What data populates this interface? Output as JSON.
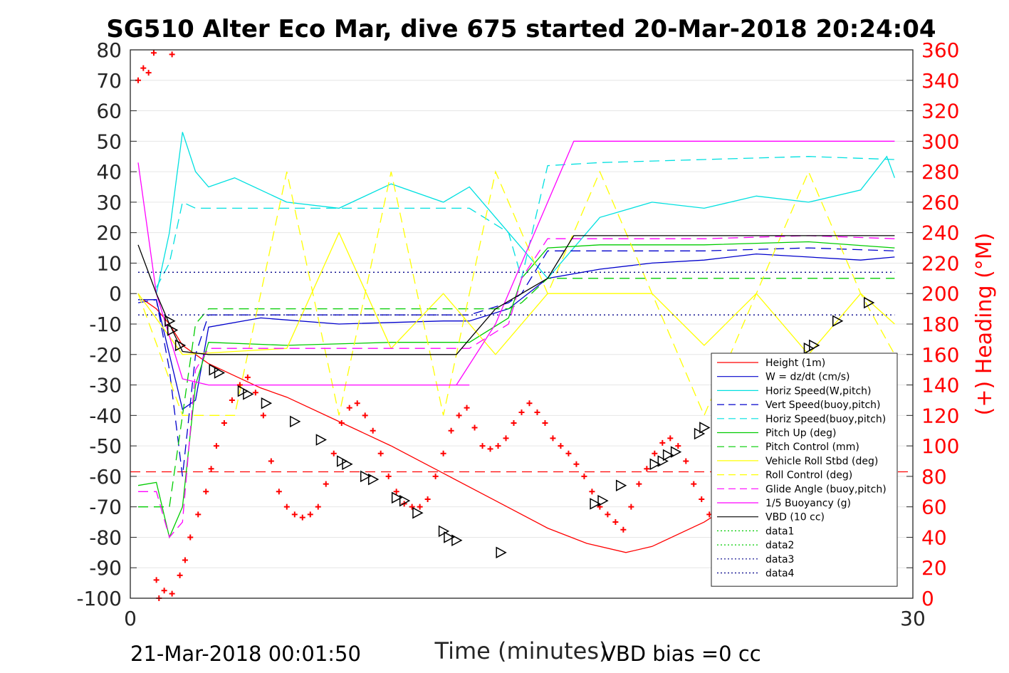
{
  "chart_data": {
    "type": "line",
    "title": "SG510 Alter Eco Mar, dive 675 started 20-Mar-2018 20:24:04",
    "xlabel": "Time (minutes)",
    "ylabel_right": "(+) Heading (°M)",
    "xlim": [
      0,
      30
    ],
    "ylim_left": [
      -100,
      80
    ],
    "ylim_right": [
      0,
      360
    ],
    "x_ticks": [
      0,
      30
    ],
    "y_ticks_left": [
      80,
      70,
      60,
      50,
      40,
      30,
      20,
      10,
      0,
      -10,
      -20,
      -30,
      -40,
      -50,
      -60,
      -70,
      -80,
      -90,
      -100
    ],
    "y_ticks_right": [
      360,
      340,
      320,
      300,
      280,
      260,
      240,
      220,
      200,
      180,
      160,
      140,
      120,
      100,
      80,
      60,
      40,
      20,
      0
    ],
    "grid": true,
    "legend_position": "bottom-right",
    "footer_left": "21-Mar-2018 00:01:50",
    "footer_right": "VBD bias =0 cc",
    "series": [
      {
        "name": "Height (1m)",
        "color": "#ff0000",
        "style": "solid",
        "x": [
          0.5,
          1.0,
          1.5,
          2.0,
          3.0,
          4.0,
          5.0,
          6.0,
          8.0,
          10.0,
          12.0,
          14.0,
          16.0,
          17.5,
          19.0,
          20.0,
          22.0,
          24.0,
          26.0,
          28.0,
          29.3
        ],
        "y": [
          -2,
          -5,
          -10,
          -17,
          -23,
          -27,
          -31,
          -34,
          -42,
          -50,
          -59,
          -68,
          -77,
          -82,
          -85,
          -83,
          -75,
          -64,
          -52,
          -36,
          -22
        ]
      },
      {
        "name": "W = dz/dt (cm/s)",
        "color": "#0000cc",
        "style": "solid",
        "x": [
          0.3,
          1.0,
          1.5,
          2.0,
          2.5,
          3.0,
          5.0,
          8.0,
          12.0,
          13.0,
          14.5,
          16.0,
          18.0,
          20.0,
          22.0,
          24.0,
          26.0,
          28.0,
          29.3
        ],
        "y": [
          -2,
          -2,
          -20,
          -38,
          -35,
          -11,
          -8,
          -10,
          -9,
          -9,
          -5,
          5,
          8,
          10,
          11,
          13,
          12,
          11,
          12
        ]
      },
      {
        "name": "Horiz Speed(W,pitch)",
        "color": "#00e0e0",
        "style": "solid",
        "x": [
          1.0,
          1.5,
          2.0,
          2.5,
          3.0,
          4.0,
          6.0,
          8.0,
          10.0,
          12.0,
          13.0,
          14.0,
          15.0,
          16.0,
          18.0,
          20.0,
          22.0,
          24.0,
          26.0,
          28.0,
          29.0,
          29.3
        ],
        "y": [
          0,
          20,
          53,
          40,
          35,
          38,
          30,
          28,
          36,
          30,
          35,
          25,
          15,
          5,
          25,
          30,
          28,
          32,
          30,
          34,
          45,
          38
        ]
      },
      {
        "name": "Vert Speed(buoy,pitch)",
        "color": "#0000cc",
        "style": "dashed",
        "x": [
          0.3,
          1.0,
          1.5,
          2.0,
          2.5,
          3.0,
          6.0,
          10.0,
          13.0,
          14.5,
          15.0,
          16.0,
          18.0,
          22.0,
          26.0,
          29.3
        ],
        "y": [
          -3,
          -2,
          -25,
          -60,
          -20,
          -7,
          -7,
          -7,
          -7,
          -3,
          0,
          14,
          14,
          14,
          15,
          14
        ]
      },
      {
        "name": "Horiz Speed(buoy,pitch)",
        "color": "#00e0e0",
        "style": "dashed",
        "x": [
          1.0,
          1.5,
          2.0,
          2.5,
          3.0,
          6.0,
          10.0,
          13.0,
          14.5,
          15.0,
          16.0,
          18.0,
          22.0,
          26.0,
          29.3
        ],
        "y": [
          2,
          10,
          30,
          28,
          28,
          28,
          28,
          28,
          20,
          5,
          42,
          43,
          44,
          45,
          44
        ]
      },
      {
        "name": "Pitch Up (deg)",
        "color": "#00cc00",
        "style": "solid",
        "x": [
          0.3,
          1.0,
          1.5,
          2.0,
          2.5,
          3.0,
          6.0,
          10.0,
          13.0,
          14.5,
          15.0,
          16.0,
          18.0,
          22.0,
          26.0,
          29.3
        ],
        "y": [
          -63,
          -62,
          -80,
          -70,
          -30,
          -16,
          -17,
          -16,
          -16,
          -8,
          5,
          15,
          16,
          16,
          17,
          15
        ]
      },
      {
        "name": "Pitch Control (mm)",
        "color": "#00cc00",
        "style": "dashed",
        "x": [
          0.3,
          1.0,
          1.5,
          2.0,
          2.5,
          3.0,
          13.0,
          14.5,
          15.0,
          16.0,
          29.3
        ],
        "y": [
          -70,
          -70,
          -70,
          -40,
          -10,
          -5,
          -5,
          -5,
          -3,
          5,
          5
        ]
      },
      {
        "name": "Vehicle Roll Stbd (deg)",
        "color": "#ffff00",
        "style": "solid",
        "x": [
          0.3,
          2.0,
          4.0,
          6.0,
          8.0,
          10.0,
          12.0,
          14.0,
          16.0,
          18.0,
          20.0,
          22.0,
          24.0,
          26.0,
          28.0,
          29.3
        ],
        "y": [
          0,
          -20,
          -19,
          -18,
          20,
          -18,
          0,
          -20,
          0,
          0,
          0,
          -17,
          0,
          -20,
          0,
          -10
        ]
      },
      {
        "name": "Roll Control (deg)",
        "color": "#ffff00",
        "style": "dashed",
        "x": [
          0.3,
          2.0,
          4.0,
          6.0,
          8.0,
          10.0,
          12.0,
          14.0,
          16.0,
          18.0,
          20.0,
          22.0,
          24.0,
          26.0,
          28.0,
          29.3
        ],
        "y": [
          0,
          -40,
          -40,
          40,
          -40,
          40,
          -40,
          40,
          0,
          40,
          0,
          -40,
          0,
          40,
          0,
          -20
        ]
      },
      {
        "name": "Glide Angle (buoy,pitch)",
        "color": "#ff00ff",
        "style": "dashed",
        "x": [
          0.3,
          1.0,
          1.5,
          2.0,
          2.5,
          3.0,
          6.0,
          10.0,
          13.0,
          14.5,
          15.0,
          16.0,
          18.0,
          22.0,
          26.0,
          29.3
        ],
        "y": [
          -65,
          -65,
          -80,
          -75,
          -25,
          -18,
          -18,
          -18,
          -18,
          -10,
          5,
          18,
          18,
          18,
          19,
          18
        ]
      },
      {
        "name": "1/5 Buoyancy (g)",
        "color": "#ff00ff",
        "style": "solid",
        "x": [
          0.3,
          1.0,
          2.0,
          3.0,
          6.0,
          10.0,
          13.0,
          12.5,
          14.0,
          15.0,
          16.0,
          17.0,
          20.0,
          24.0,
          29.3
        ],
        "y": [
          43,
          0,
          -28,
          -30,
          -30,
          -30,
          -30,
          -30,
          -10,
          10,
          30,
          50,
          50,
          50,
          50
        ]
      },
      {
        "name": "VBD (10 cc)",
        "color": "#000000",
        "style": "solid",
        "x": [
          0.3,
          1.0,
          1.5,
          2.0,
          3.0,
          6.0,
          10.0,
          12.5,
          14.0,
          15.0,
          16.0,
          17.0,
          20.0,
          24.0,
          29.3
        ],
        "y": [
          16,
          0,
          -10,
          -19,
          -20,
          -20,
          -20,
          -20,
          -5,
          0,
          5,
          19,
          19,
          19,
          19
        ]
      },
      {
        "name": "data1",
        "color": "#00cc00",
        "style": "dotted",
        "x": [],
        "y": []
      },
      {
        "name": "data2",
        "color": "#00cc00",
        "style": "dotted",
        "x": [],
        "y": []
      },
      {
        "name": "data3",
        "color": "#000088",
        "style": "dotted",
        "x": [
          0.3,
          29.3
        ],
        "y": [
          7,
          7
        ]
      },
      {
        "name": "data4",
        "color": "#000088",
        "style": "dotted",
        "x": [
          0.3,
          29.3
        ],
        "y": [
          -7,
          -7
        ]
      }
    ],
    "red_dashed_reference": {
      "color": "#ff0000",
      "y": -58.5
    },
    "heading": {
      "name": "(+) Heading",
      "axis": "right",
      "color": "#ff0000",
      "x": [
        0.3,
        0.5,
        0.7,
        0.9,
        1.1,
        1.6,
        1.0,
        1.3,
        1.6,
        1.9,
        2.1,
        2.3,
        2.6,
        2.9,
        3.1,
        3.3,
        3.6,
        3.9,
        4.2,
        4.5,
        4.8,
        5.1,
        5.4,
        5.7,
        6.0,
        6.3,
        6.6,
        6.9,
        7.2,
        7.5,
        7.8,
        8.1,
        8.4,
        8.7,
        9.0,
        9.3,
        9.6,
        9.9,
        10.2,
        10.5,
        10.8,
        11.1,
        11.4,
        11.7,
        12.0,
        12.3,
        12.6,
        12.9,
        13.2,
        13.5,
        13.8,
        14.1,
        14.4,
        14.7,
        15.0,
        15.3,
        15.6,
        15.9,
        16.2,
        16.5,
        16.8,
        17.1,
        17.4,
        17.7,
        18.0,
        18.3,
        18.6,
        18.9,
        19.2,
        19.5,
        19.8,
        20.1,
        20.4,
        20.7,
        21.0,
        21.3,
        21.6,
        21.9,
        22.2,
        22.5,
        22.8,
        23.1,
        23.4,
        23.7,
        24.0,
        24.3,
        24.6,
        24.9,
        25.2,
        25.5,
        25.8,
        26.1,
        26.4,
        26.7,
        27.0,
        27.3,
        27.6,
        27.9,
        28.2
      ],
      "y": [
        340,
        348,
        345,
        358,
        0,
        357,
        12,
        5,
        3,
        15,
        25,
        40,
        55,
        70,
        85,
        100,
        115,
        130,
        140,
        145,
        135,
        120,
        90,
        70,
        60,
        55,
        53,
        55,
        60,
        75,
        95,
        115,
        125,
        128,
        120,
        110,
        95,
        80,
        70,
        62,
        60,
        60,
        65,
        80,
        95,
        110,
        120,
        125,
        112,
        100,
        98,
        100,
        105,
        115,
        122,
        128,
        122,
        115,
        105,
        100,
        95,
        88,
        80,
        70,
        60,
        55,
        50,
        45,
        60,
        75,
        85,
        95,
        102,
        105,
        100,
        90,
        75,
        65,
        55,
        45,
        40,
        50,
        60,
        75,
        85,
        95,
        100,
        105,
        102,
        90,
        80,
        70,
        60,
        50,
        42,
        40,
        45,
        55,
        65
      ]
    },
    "markers": {
      "symbol": "triangle",
      "color": "#000000",
      "x": [
        1.5,
        1.6,
        1.9,
        3.2,
        3.4,
        4.3,
        4.5,
        5.2,
        6.3,
        7.3,
        8.1,
        8.3,
        9.0,
        9.3,
        10.2,
        10.5,
        11.0,
        12.0,
        12.2,
        12.5,
        14.2,
        17.8,
        18.1,
        18.8,
        20.1,
        20.4,
        20.6,
        20.9,
        21.8,
        22.0,
        26.0,
        26.2,
        27.1,
        28.3
      ],
      "y": [
        -9,
        -12,
        -17,
        -25,
        -26,
        -32,
        -33,
        -36,
        -42,
        -48,
        -55,
        -56,
        -60,
        -61,
        -67,
        -68,
        -72,
        -78,
        -80,
        -81,
        -85,
        -69,
        -68,
        -63,
        -56,
        -55,
        -53,
        -52,
        -46,
        -44,
        -18,
        -17,
        -9,
        -3
      ]
    }
  }
}
